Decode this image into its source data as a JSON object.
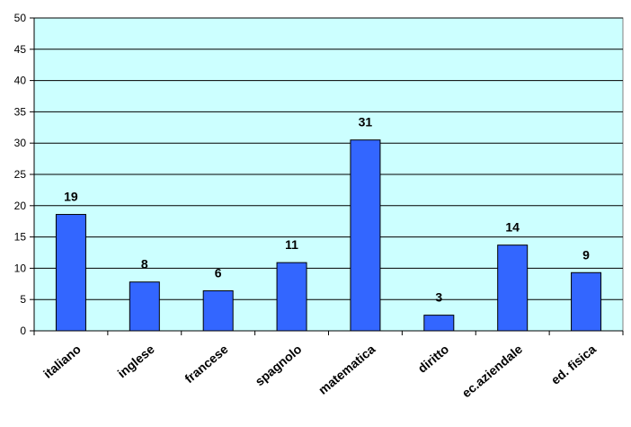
{
  "chart_data": {
    "type": "bar",
    "title": "",
    "xlabel": "",
    "ylabel": "",
    "categories": [
      "italiano",
      "inglese",
      "francese",
      "spagnolo",
      "matematica",
      "diritto",
      "ec.aziendale",
      "ed. fisica"
    ],
    "values": [
      18.6,
      7.8,
      6.4,
      10.9,
      30.5,
      2.5,
      13.7,
      9.3
    ],
    "data_labels": [
      "19",
      "8",
      "6",
      "11",
      "31",
      "3",
      "14",
      "9"
    ],
    "ylim": [
      0,
      50
    ],
    "yticks": [
      0,
      5,
      10,
      15,
      20,
      25,
      30,
      35,
      40,
      45,
      50
    ],
    "grid": true,
    "legend": "none",
    "colors": {
      "bar": "#3366ff",
      "bar_border": "#000000",
      "plot_background": "#ccffff",
      "gridline": "#000000"
    }
  }
}
